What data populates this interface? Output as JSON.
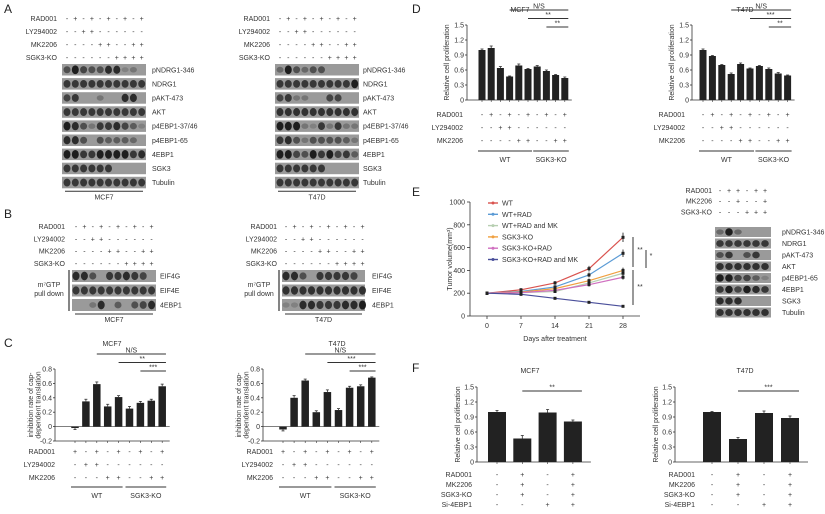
{
  "panels": {
    "A": "A",
    "B": "B",
    "C": "C",
    "D": "D",
    "E": "E",
    "F": "F"
  },
  "blots": {
    "A_MCF7": {
      "cell_line": "MCF7",
      "conditions": [
        {
          "name": "RAD001",
          "signs": "-+-+-+-+-+"
        },
        {
          "name": "LY294002",
          "signs": "--++------"
        },
        {
          "name": "MK2206",
          "signs": "----++--++"
        },
        {
          "name": "SGK3-KO",
          "signs": "------++++"
        }
      ],
      "rows": [
        {
          "label": "pNDRG1-346",
          "bands": [
            0.6,
            1,
            0.7,
            0.6,
            0.6,
            0.9,
            0.9,
            0.2,
            0.3,
            0
          ]
        },
        {
          "label": "NDRG1",
          "bands": [
            0.8,
            0.8,
            0.8,
            0.8,
            0.8,
            0.8,
            0.8,
            0.8,
            0.8,
            0.8
          ]
        },
        {
          "label": "pAKT-473",
          "bands": [
            0.7,
            0.8,
            0,
            0,
            0.3,
            0,
            0,
            0.9,
            0.9,
            0
          ]
        },
        {
          "label": "AKT",
          "bands": [
            0.8,
            0.8,
            0.8,
            0.8,
            0.8,
            0.8,
            0.8,
            0.8,
            0.8,
            0.8
          ]
        },
        {
          "label": "p4EBP1-37/46",
          "bands": [
            1,
            0.9,
            0.6,
            0.3,
            0.8,
            0.8,
            0.9,
            0.7,
            0.5,
            0.2
          ]
        },
        {
          "label": "p4EBP1-65",
          "bands": [
            0.9,
            0.9,
            0.6,
            0,
            0.6,
            0.5,
            0.5,
            0.5,
            0.4,
            0
          ]
        },
        {
          "label": "4EBP1",
          "bands": [
            1,
            1,
            0.8,
            0.8,
            1,
            1,
            1,
            1,
            0.8,
            0.9
          ]
        },
        {
          "label": "SGK3",
          "bands": [
            0.8,
            0.8,
            0.8,
            0.8,
            0.8,
            0.8,
            0,
            0,
            0,
            0
          ]
        },
        {
          "label": "Tubulin",
          "bands": [
            0.8,
            0.8,
            0.8,
            0.8,
            0.8,
            0.8,
            0.8,
            0.8,
            0.8,
            0.8
          ]
        }
      ]
    },
    "A_T47D": {
      "cell_line": "T47D",
      "conditions": [
        {
          "name": "RAD001",
          "signs": "-+-+-+-+-+"
        },
        {
          "name": "LY294002",
          "signs": "--++------"
        },
        {
          "name": "MK2206",
          "signs": "----++--++"
        },
        {
          "name": "SGK3-KO",
          "signs": "------++++"
        }
      ],
      "rows": [
        {
          "label": "pNDRG1-346",
          "bands": [
            0.4,
            1,
            0.6,
            0.4,
            0.6,
            0.6,
            0,
            0,
            0,
            0
          ]
        },
        {
          "label": "NDRG1",
          "bands": [
            0.8,
            0.8,
            0.8,
            0.8,
            0.8,
            0.8,
            0.8,
            0.8,
            0.8,
            1
          ]
        },
        {
          "label": "pAKT-473",
          "bands": [
            0.7,
            0.8,
            0.3,
            0.3,
            0,
            0,
            0.7,
            0.7,
            0,
            0
          ]
        },
        {
          "label": "AKT",
          "bands": [
            0.85,
            0.85,
            0.85,
            0.85,
            0.85,
            0.85,
            0.85,
            0.85,
            0.85,
            0.85
          ]
        },
        {
          "label": "p4EBP1-37/46",
          "bands": [
            1,
            1,
            1,
            0.3,
            0.2,
            0.8,
            0.3,
            0.8,
            0.3,
            0.3
          ]
        },
        {
          "label": "p4EBP1-65",
          "bands": [
            0.8,
            0.9,
            0.6,
            0.3,
            0.6,
            0.6,
            0.6,
            0.6,
            0.5,
            0.3
          ]
        },
        {
          "label": "4EBP1",
          "bands": [
            1,
            1,
            0.7,
            0.6,
            1,
            0.8,
            1,
            0.7,
            0.8,
            0.5
          ]
        },
        {
          "label": "SGK3",
          "bands": [
            0.8,
            0.8,
            0.8,
            0.8,
            0.8,
            0.8,
            0,
            0,
            0,
            0
          ]
        },
        {
          "label": "Tubulin",
          "bands": [
            0.8,
            0.8,
            0.8,
            0.8,
            0.8,
            0.8,
            0.8,
            0.8,
            0.8,
            0.8
          ]
        }
      ]
    },
    "B_MCF7": {
      "cell_line": "MCF7",
      "pulldown": [
        "m⁷GTP",
        "pull down"
      ],
      "conditions": [
        {
          "name": "RAD001",
          "signs": "-+-+-+-+-+"
        },
        {
          "name": "LY294002",
          "signs": "--++------"
        },
        {
          "name": "MK2206",
          "signs": "----++--++"
        },
        {
          "name": "SGK3-KO",
          "signs": "------++++"
        }
      ],
      "rows": [
        {
          "label": "EIF4G",
          "bands": [
            0.9,
            0.9,
            0.6,
            0,
            0.8,
            0.8,
            0.9,
            0.8,
            0.7,
            0
          ]
        },
        {
          "label": "EIF4E",
          "bands": [
            0.8,
            0.8,
            0.8,
            0.8,
            0.8,
            0.8,
            0.8,
            0.8,
            0.8,
            0.8
          ]
        },
        {
          "label": "4EBP1",
          "bands": [
            0,
            0,
            0.3,
            0.9,
            0,
            0.5,
            0,
            0.6,
            0.7,
            0.9
          ]
        }
      ]
    },
    "B_T47D": {
      "cell_line": "T47D",
      "pulldown": [
        "m⁷GTP",
        "pull down"
      ],
      "conditions": [
        {
          "name": "RAD001",
          "signs": "-+-+-+-+-+"
        },
        {
          "name": "LY294002",
          "signs": "--++------"
        },
        {
          "name": "MK2206",
          "signs": "----++--++"
        },
        {
          "name": "SGK3-KO",
          "signs": "------++++"
        }
      ],
      "rows": [
        {
          "label": "EIF4G",
          "bands": [
            0.9,
            0.9,
            0.6,
            0,
            0.8,
            0.8,
            0.8,
            0.8,
            0.7,
            0
          ]
        },
        {
          "label": "EIF4E",
          "bands": [
            0.85,
            0.85,
            0.85,
            0.85,
            0.85,
            0.85,
            0.85,
            0.85,
            0.85,
            0.85
          ]
        },
        {
          "label": "4EBP1",
          "bands": [
            0.2,
            0.2,
            0.9,
            0.9,
            0.8,
            0.8,
            0.8,
            0.9,
            0.9,
            1
          ]
        }
      ]
    },
    "E_blot": {
      "cell_line": "",
      "conditions": [
        {
          "name": "RAD001",
          "signs": "-++-++"
        },
        {
          "name": "MK2206",
          "signs": "--+--+"
        },
        {
          "name": "SGK3-KO",
          "signs": "---+++"
        }
      ],
      "rows": [
        {
          "label": "pNDRG1-346",
          "bands": [
            0.4,
            1,
            0.4,
            0,
            0,
            0
          ]
        },
        {
          "label": "NDRG1",
          "bands": [
            0.8,
            0.8,
            0.8,
            0.8,
            0.8,
            0.8
          ]
        },
        {
          "label": "pAKT-473",
          "bands": [
            0.6,
            0.8,
            0,
            0.6,
            0.8,
            0
          ]
        },
        {
          "label": "AKT",
          "bands": [
            0.85,
            0.85,
            0.85,
            0.85,
            0.85,
            0.85
          ]
        },
        {
          "label": "p4EBP1-65",
          "bands": [
            1,
            1,
            0.7,
            0.7,
            0.5,
            0.2
          ]
        },
        {
          "label": "4EBP1",
          "bands": [
            0.8,
            1,
            0.7,
            1,
            0.9,
            0.8
          ]
        },
        {
          "label": "SGK3",
          "bands": [
            0.9,
            0.9,
            0.9,
            0,
            0,
            0
          ]
        },
        {
          "label": "Tubulin",
          "bands": [
            0.85,
            0.85,
            0.85,
            0.85,
            0.85,
            0.85
          ]
        }
      ]
    }
  },
  "chart_data": [
    {
      "id": "C_MCF7",
      "type": "bar",
      "title": "MCF7",
      "ylabel": [
        "inhibition rate of cap-",
        "dependent translation"
      ],
      "ylim": [
        -0.2,
        0.8
      ],
      "yticks": [
        "0.8",
        "0.6",
        "0.4",
        "0.2",
        "0",
        "-0.2"
      ],
      "values": [
        -0.02,
        0.35,
        0.59,
        0.28,
        0.41,
        0.25,
        0.33,
        0.36,
        0.56
      ],
      "errors": [
        0.02,
        0.03,
        0.03,
        0.03,
        0.02,
        0.03,
        0.02,
        0.02,
        0.03
      ],
      "conditions": [
        {
          "name": "RAD001",
          "signs": "+-+-+-+-+"
        },
        {
          "name": "LY294002",
          "signs": "-++------"
        },
        {
          "name": "MK2206",
          "signs": "---++--++"
        }
      ],
      "groups": [
        {
          "label": "WT",
          "from": 0,
          "to": 4
        },
        {
          "label": "SGK3-KO",
          "from": 5,
          "to": 8
        }
      ],
      "significance": [
        {
          "label": "N/S",
          "from": 2,
          "to": 8
        },
        {
          "label": "**",
          "from": 4,
          "to": 8
        },
        {
          "label": "***",
          "from": 6,
          "to": 8
        }
      ]
    },
    {
      "id": "C_T47D",
      "type": "bar",
      "title": "T47D",
      "ylabel": [
        "inhibition rate of cap-",
        "dependent translation"
      ],
      "ylim": [
        -0.2,
        0.8
      ],
      "yticks": [
        "0.8",
        "0.6",
        "0.4",
        "0.2",
        "0",
        "-0.2"
      ],
      "values": [
        -0.04,
        0.4,
        0.64,
        0.2,
        0.48,
        0.23,
        0.54,
        0.56,
        0.68
      ],
      "errors": [
        0.02,
        0.03,
        0.02,
        0.02,
        0.03,
        0.02,
        0.02,
        0.02,
        0.01
      ],
      "conditions": [
        {
          "name": "RAD001",
          "signs": "+-+-+-+-+"
        },
        {
          "name": "LY294002",
          "signs": "-++------"
        },
        {
          "name": "MK2206",
          "signs": "---++--++"
        }
      ],
      "groups": [
        {
          "label": "WT",
          "from": 0,
          "to": 4
        },
        {
          "label": "SGK3-KO",
          "from": 5,
          "to": 8
        }
      ],
      "significance": [
        {
          "label": "N/S",
          "from": 2,
          "to": 8
        },
        {
          "label": "***",
          "from": 4,
          "to": 8
        },
        {
          "label": "***",
          "from": 6,
          "to": 8
        }
      ]
    },
    {
      "id": "D_MCF7",
      "type": "bar",
      "title": "MCF7",
      "ylabel": [
        "Relative cell proliferation"
      ],
      "ylim": [
        0,
        1.5
      ],
      "yticks": [
        "1.5",
        "1.2",
        "0.9",
        "0.6",
        "0.3",
        "0"
      ],
      "values": [
        1.0,
        1.04,
        0.64,
        0.47,
        0.69,
        0.62,
        0.67,
        0.58,
        0.5,
        0.44
      ],
      "errors": [
        0.02,
        0.04,
        0.03,
        0.01,
        0.03,
        0.01,
        0.02,
        0.02,
        0.01,
        0.02
      ],
      "conditions": [
        {
          "name": "RAD001",
          "signs": "-+-+-+-+-+"
        },
        {
          "name": "LY294002",
          "signs": "--++------"
        },
        {
          "name": "MK2206",
          "signs": "----++--++"
        }
      ],
      "groups": [
        {
          "label": "WT",
          "from": 0,
          "to": 5
        },
        {
          "label": "SGK3-KO",
          "from": 6,
          "to": 9
        }
      ],
      "significance": [
        {
          "label": "N/S",
          "from": 3,
          "to": 9
        },
        {
          "label": "**",
          "from": 5,
          "to": 9
        },
        {
          "label": "**",
          "from": 7,
          "to": 9
        }
      ]
    },
    {
      "id": "D_T47D",
      "type": "bar",
      "title": "T47D",
      "ylabel": [
        "Relative cell proliferation"
      ],
      "ylim": [
        0,
        1.5
      ],
      "yticks": [
        "1.5",
        "1.2",
        "0.9",
        "0.6",
        "0.3",
        "0"
      ],
      "values": [
        1.0,
        0.88,
        0.7,
        0.52,
        0.72,
        0.63,
        0.68,
        0.62,
        0.53,
        0.49
      ],
      "errors": [
        0.02,
        0.01,
        0.01,
        0.02,
        0.02,
        0.01,
        0.01,
        0.02,
        0.02,
        0.01
      ],
      "conditions": [
        {
          "name": "RAD001",
          "signs": "-+-+-+-+-+"
        },
        {
          "name": "LY294002",
          "signs": "--++------"
        },
        {
          "name": "MK2206",
          "signs": "----++--++"
        }
      ],
      "groups": [
        {
          "label": "WT",
          "from": 0,
          "to": 5
        },
        {
          "label": "SGK3-KO",
          "from": 6,
          "to": 9
        }
      ],
      "significance": [
        {
          "label": "N/S",
          "from": 3,
          "to": 9
        },
        {
          "label": "***",
          "from": 5,
          "to": 9
        },
        {
          "label": "**",
          "from": 7,
          "to": 9
        }
      ]
    },
    {
      "id": "E_growth",
      "type": "line",
      "title": "",
      "xlabel": "Days after treatment",
      "ylabel": "Tumor volume(mm³)",
      "x": [
        0,
        7,
        14,
        21,
        28
      ],
      "xlim": [
        0,
        28
      ],
      "ylim": [
        0,
        1000
      ],
      "yticks": [
        "0",
        "200",
        "400",
        "600",
        "800",
        "1000"
      ],
      "legend": "top-left",
      "series": [
        {
          "name": "WT",
          "color": "#d9534f",
          "values": [
            200,
            230,
            290,
            415,
            690
          ]
        },
        {
          "name": "WT+RAD",
          "color": "#5b9bd5",
          "values": [
            200,
            215,
            255,
            360,
            550
          ]
        },
        {
          "name": "WT+RAD and MK",
          "color": "#b7cfb1",
          "values": [
            200,
            205,
            215,
            290,
            375
          ]
        },
        {
          "name": "SGK3-KO",
          "color": "#f0a040",
          "values": [
            200,
            210,
            240,
            310,
            400
          ]
        },
        {
          "name": "SGK3-KO+RAD",
          "color": "#d070c0",
          "values": [
            200,
            205,
            225,
            275,
            340
          ]
        },
        {
          "name": "SGK3-KO+RAD and MK",
          "color": "#4a4f9a",
          "values": [
            200,
            190,
            155,
            120,
            85
          ]
        }
      ],
      "significance": [
        "**",
        "*",
        "**"
      ]
    },
    {
      "id": "F_MCF7",
      "type": "bar",
      "title": "MCF7",
      "ylabel": [
        "Relative cell proliferation"
      ],
      "ylim": [
        0,
        1.5
      ],
      "yticks": [
        "1.5",
        "1.2",
        "0.9",
        "0.6",
        "0.3",
        "0"
      ],
      "values": [
        1.0,
        0.47,
        0.99,
        0.81
      ],
      "errors": [
        0.03,
        0.06,
        0.06,
        0.03
      ],
      "conditions": [
        {
          "name": "RAD001",
          "signs": "-+-+"
        },
        {
          "name": "MK2206",
          "signs": "-+-+"
        },
        {
          "name": "SGK3-KO",
          "signs": "-+-+"
        },
        {
          "name": "Si-4EBP1",
          "signs": "--++"
        }
      ],
      "groups": [],
      "significance": [
        {
          "label": "**",
          "from": 1,
          "to": 3
        }
      ]
    },
    {
      "id": "F_T47D",
      "type": "bar",
      "title": "T47D",
      "ylabel": [
        "Relative cell proliferation"
      ],
      "ylim": [
        0,
        1.5
      ],
      "yticks": [
        "1.5",
        "1.2",
        "0.9",
        "0.6",
        "0.3",
        "0"
      ],
      "values": [
        1.0,
        0.46,
        0.98,
        0.88
      ],
      "errors": [
        0.01,
        0.03,
        0.04,
        0.04
      ],
      "conditions": [
        {
          "name": "RAD001",
          "signs": "-+-+"
        },
        {
          "name": "MK2206",
          "signs": "-+-+"
        },
        {
          "name": "SGK3-KO",
          "signs": "-+-+"
        },
        {
          "name": "Si-4EBP1",
          "signs": "--++"
        }
      ],
      "groups": [],
      "significance": [
        {
          "label": "***",
          "from": 1,
          "to": 3
        }
      ]
    }
  ]
}
